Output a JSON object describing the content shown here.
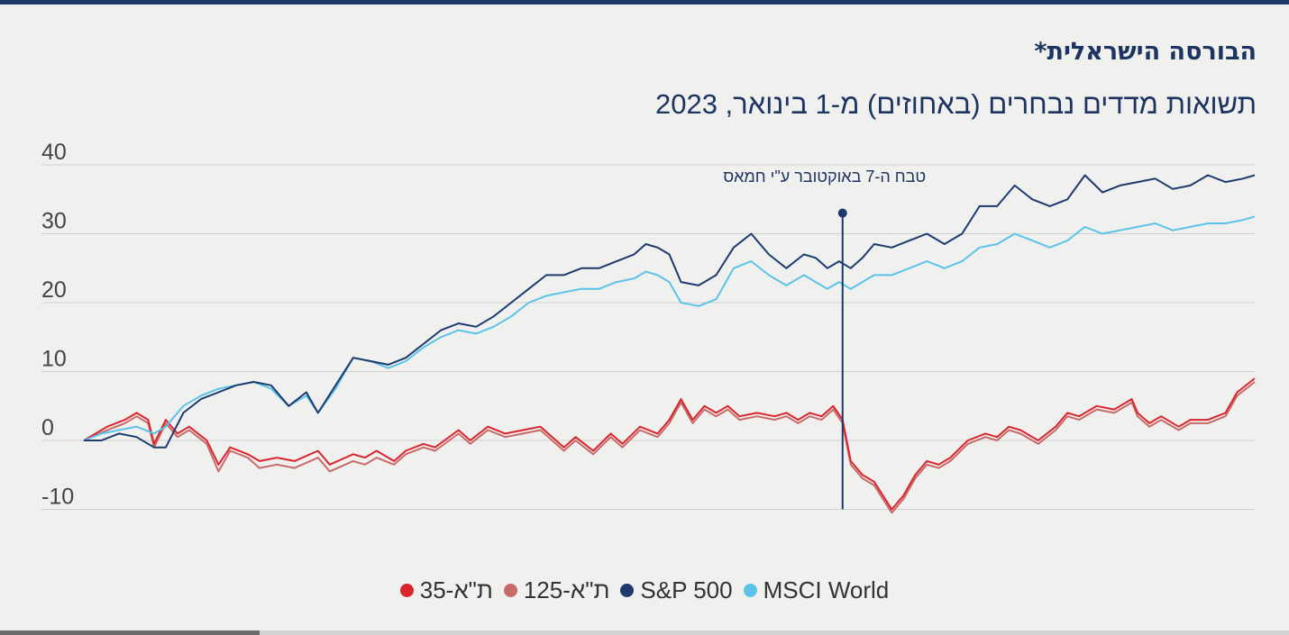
{
  "title": "הבורסה הישראלית*",
  "subtitle": "תשואות מדדים נבחרים (באחוזים) מ-1 בינואר, 2023",
  "colors": {
    "ta35": "#d9262c",
    "ta125": "#c96a6a",
    "sp500": "#1c3a6e",
    "msci": "#5bc3ea",
    "grid": "#cfcfcf",
    "annotation": "#1c3a6e"
  },
  "legend": [
    {
      "label": "ת\"א-35",
      "color": "#d9262c"
    },
    {
      "label": "ת\"א-125",
      "color": "#c96a6a"
    },
    {
      "label": "S&P 500",
      "color": "#1c3a6e"
    },
    {
      "label": "MSCI World",
      "color": "#5bc3ea"
    }
  ],
  "chart_data": {
    "type": "line",
    "title": "הבורסה הישראלית*",
    "subtitle": "תשואות מדדים נבחרים (באחוזים) מ-1 בינואר, 2023",
    "xlabel": "",
    "ylabel": "",
    "ylim": [
      -10,
      40
    ],
    "yticks": [
      40,
      30,
      20,
      10,
      0,
      -10
    ],
    "xlim": [
      0,
      1
    ],
    "grid": true,
    "legend_position": "bottom",
    "annotation": {
      "x": 0.648,
      "label": "טבח ה-7 באוקטובר ע\"י חמאס",
      "marker_y": 33
    },
    "series": [
      {
        "name": "ת\"א-35",
        "x": [
          0,
          0.02,
          0.035,
          0.045,
          0.055,
          0.06,
          0.07,
          0.08,
          0.09,
          0.105,
          0.115,
          0.125,
          0.14,
          0.15,
          0.165,
          0.18,
          0.2,
          0.21,
          0.23,
          0.24,
          0.25,
          0.265,
          0.275,
          0.29,
          0.3,
          0.32,
          0.33,
          0.345,
          0.36,
          0.375,
          0.39,
          0.41,
          0.42,
          0.435,
          0.45,
          0.46,
          0.475,
          0.49,
          0.5,
          0.51,
          0.52,
          0.53,
          0.54,
          0.55,
          0.56,
          0.575,
          0.59,
          0.6,
          0.61,
          0.62,
          0.63,
          0.64,
          0.648,
          0.655,
          0.665,
          0.675,
          0.69,
          0.7,
          0.71,
          0.72,
          0.73,
          0.74,
          0.755,
          0.77,
          0.78,
          0.79,
          0.8,
          0.815,
          0.83,
          0.84,
          0.85,
          0.865,
          0.88,
          0.895,
          0.9,
          0.91,
          0.92,
          0.935,
          0.945,
          0.96,
          0.975,
          0.985,
          1
        ],
        "values": [
          0,
          2,
          3,
          4,
          3,
          -0.5,
          3,
          1,
          2,
          0,
          -3.5,
          -1,
          -2,
          -3,
          -2.5,
          -3,
          -1.5,
          -3.5,
          -2,
          -2.5,
          -1.5,
          -3,
          -1.5,
          -0.5,
          -1,
          1.5,
          0,
          2,
          1,
          1.5,
          2,
          -1,
          0.5,
          -1.5,
          1,
          -0.5,
          2,
          1,
          3,
          6,
          3,
          5,
          4,
          5,
          3.5,
          4,
          3.5,
          4,
          3,
          4,
          3.5,
          5,
          3,
          -3,
          -5,
          -6,
          -10,
          -8,
          -5,
          -3,
          -3.5,
          -2.5,
          0,
          1,
          0.5,
          2,
          1.5,
          0,
          2,
          4,
          3.5,
          5,
          4.5,
          6,
          4,
          2.5,
          3.5,
          2,
          3,
          3,
          4,
          7,
          9
        ]
      },
      {
        "name": "ת\"א-125",
        "x": [
          0,
          0.02,
          0.035,
          0.045,
          0.055,
          0.06,
          0.07,
          0.08,
          0.09,
          0.105,
          0.115,
          0.125,
          0.14,
          0.15,
          0.165,
          0.18,
          0.2,
          0.21,
          0.23,
          0.24,
          0.25,
          0.265,
          0.275,
          0.29,
          0.3,
          0.32,
          0.33,
          0.345,
          0.36,
          0.375,
          0.39,
          0.41,
          0.42,
          0.435,
          0.45,
          0.46,
          0.475,
          0.49,
          0.5,
          0.51,
          0.52,
          0.53,
          0.54,
          0.55,
          0.56,
          0.575,
          0.59,
          0.6,
          0.61,
          0.62,
          0.63,
          0.64,
          0.648,
          0.655,
          0.665,
          0.675,
          0.69,
          0.7,
          0.71,
          0.72,
          0.73,
          0.74,
          0.755,
          0.77,
          0.78,
          0.79,
          0.8,
          0.815,
          0.83,
          0.84,
          0.85,
          0.865,
          0.88,
          0.895,
          0.9,
          0.91,
          0.92,
          0.935,
          0.945,
          0.96,
          0.975,
          0.985,
          1
        ],
        "values": [
          0,
          1.5,
          2.5,
          3.5,
          2.5,
          -1,
          2.5,
          0.5,
          1.5,
          -0.5,
          -4.5,
          -1.5,
          -2.5,
          -4,
          -3.5,
          -4,
          -2.5,
          -4.5,
          -3,
          -3.5,
          -2.5,
          -3.5,
          -2,
          -1,
          -1.5,
          1,
          -0.5,
          1.5,
          0.5,
          1,
          1.5,
          -1.5,
          0,
          -2,
          0.5,
          -1,
          1.5,
          0.5,
          2.5,
          5.5,
          2.5,
          4.5,
          3.5,
          4.5,
          3,
          3.5,
          3,
          3.5,
          2.5,
          3.5,
          3,
          4.5,
          2.5,
          -3.5,
          -5.5,
          -6.5,
          -10.5,
          -8.5,
          -5.5,
          -3.5,
          -4,
          -3,
          -0.5,
          0.5,
          0,
          1.5,
          1,
          -0.5,
          1.5,
          3.5,
          3,
          4.5,
          4,
          5.5,
          3.5,
          2,
          3,
          1.5,
          2.5,
          2.5,
          3.5,
          6.5,
          8.5
        ]
      },
      {
        "name": "S&P 500",
        "x": [
          0,
          0.015,
          0.03,
          0.045,
          0.06,
          0.07,
          0.085,
          0.1,
          0.115,
          0.13,
          0.145,
          0.16,
          0.175,
          0.19,
          0.2,
          0.215,
          0.23,
          0.245,
          0.26,
          0.275,
          0.29,
          0.305,
          0.32,
          0.335,
          0.35,
          0.365,
          0.38,
          0.395,
          0.41,
          0.425,
          0.44,
          0.455,
          0.47,
          0.48,
          0.49,
          0.5,
          0.51,
          0.525,
          0.54,
          0.555,
          0.57,
          0.585,
          0.6,
          0.615,
          0.625,
          0.635,
          0.645,
          0.655,
          0.665,
          0.675,
          0.69,
          0.705,
          0.72,
          0.735,
          0.75,
          0.765,
          0.78,
          0.795,
          0.81,
          0.825,
          0.84,
          0.855,
          0.87,
          0.885,
          0.9,
          0.915,
          0.93,
          0.945,
          0.96,
          0.975,
          0.99,
          1
        ],
        "values": [
          0,
          0,
          1,
          0.5,
          -1,
          -1,
          4,
          6,
          7,
          8,
          8.5,
          8,
          5,
          7,
          4,
          8,
          12,
          11.5,
          11,
          12,
          14,
          16,
          17,
          16.5,
          18,
          20,
          22,
          24,
          24,
          25,
          25,
          26,
          27,
          28.5,
          28,
          27,
          23,
          22.5,
          24,
          28,
          30,
          27,
          25,
          27,
          26.5,
          25,
          26,
          25,
          26.5,
          28.5,
          28,
          29,
          30,
          28.5,
          30,
          34,
          34,
          37,
          35,
          34,
          35,
          38.5,
          36,
          37,
          37.5,
          38,
          36.5,
          37,
          38.5,
          37.5,
          38,
          38.5
        ]
      },
      {
        "name": "MSCI World",
        "x": [
          0,
          0.015,
          0.03,
          0.045,
          0.06,
          0.07,
          0.085,
          0.1,
          0.115,
          0.13,
          0.145,
          0.16,
          0.175,
          0.19,
          0.2,
          0.215,
          0.23,
          0.245,
          0.26,
          0.275,
          0.29,
          0.305,
          0.32,
          0.335,
          0.35,
          0.365,
          0.38,
          0.395,
          0.41,
          0.425,
          0.44,
          0.455,
          0.47,
          0.48,
          0.49,
          0.5,
          0.51,
          0.525,
          0.54,
          0.555,
          0.57,
          0.585,
          0.6,
          0.615,
          0.625,
          0.635,
          0.645,
          0.655,
          0.665,
          0.675,
          0.69,
          0.705,
          0.72,
          0.735,
          0.75,
          0.765,
          0.78,
          0.795,
          0.81,
          0.825,
          0.84,
          0.855,
          0.87,
          0.885,
          0.9,
          0.915,
          0.93,
          0.945,
          0.96,
          0.975,
          0.99,
          1
        ],
        "values": [
          0,
          1,
          1.5,
          2,
          1,
          2,
          5,
          6.5,
          7.5,
          8,
          8.5,
          7.5,
          5,
          6.5,
          4,
          7.5,
          12,
          11.5,
          10.5,
          11.5,
          13.5,
          15,
          16,
          15.5,
          16.5,
          18,
          20,
          21,
          21.5,
          22,
          22,
          23,
          23.5,
          24.5,
          24,
          23,
          20,
          19.5,
          20.5,
          25,
          26,
          24,
          22.5,
          24,
          23,
          22,
          23,
          22,
          23,
          24,
          24,
          25,
          26,
          25,
          26,
          28,
          28.5,
          30,
          29,
          28,
          29,
          31,
          30,
          30.5,
          31,
          31.5,
          30.5,
          31,
          31.5,
          31.5,
          32,
          32.5
        ]
      }
    ]
  }
}
